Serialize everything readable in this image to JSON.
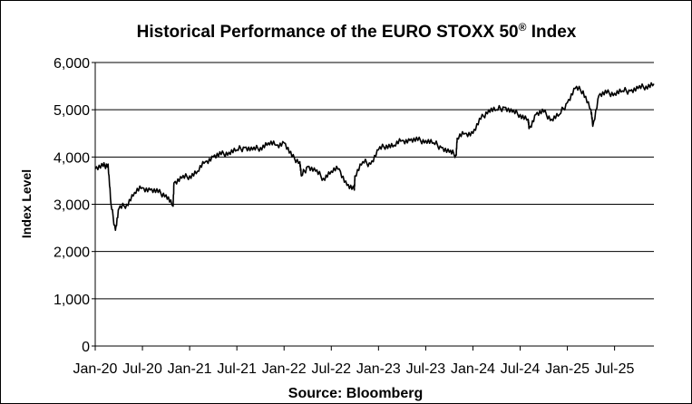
{
  "chart_data": {
    "type": "line",
    "title": "Historical  Performance  of the EURO STOXX 50",
    "title_superscript": "®",
    "title_suffix": " Index",
    "ylabel": "Index Level",
    "source": "Source: Bloomberg",
    "ylim": [
      0,
      6000
    ],
    "y_ticks": [
      "0",
      "1,000",
      "2,000",
      "3,000",
      "4,000",
      "5,000",
      "6,000"
    ],
    "y_tick_values": [
      0,
      1000,
      2000,
      3000,
      4000,
      5000,
      6000
    ],
    "x_ticks": [
      "Jan-20",
      "Jul-20",
      "Jan-21",
      "Jul-21",
      "Jan-22",
      "Jul-22",
      "Jan-23",
      "Jul-23",
      "Jan-24",
      "Jul-24",
      "Jan-25",
      "Jul-25"
    ],
    "x_tick_dates": [
      "2020-01",
      "2020-07",
      "2021-01",
      "2021-07",
      "2022-01",
      "2022-07",
      "2023-01",
      "2023-07",
      "2024-01",
      "2024-07",
      "2025-01",
      "2025-07"
    ],
    "xlim": [
      "2020-01",
      "2025-12"
    ],
    "grid": "horizontal",
    "line_color": "#000000",
    "series": [
      {
        "dates": [
          "2020-01",
          "2020-02",
          "2020-02-20",
          "2020-03",
          "2020-03-18",
          "2020-04",
          "2020-05",
          "2020-06",
          "2020-07",
          "2020-08",
          "2020-09",
          "2020-10",
          "2020-10-28",
          "2020-11",
          "2020-12",
          "2021-01",
          "2021-02",
          "2021-03",
          "2021-04",
          "2021-05",
          "2021-06",
          "2021-07",
          "2021-08",
          "2021-09",
          "2021-10",
          "2021-11",
          "2021-12",
          "2022-01",
          "2022-02",
          "2022-03",
          "2022-03-07",
          "2022-04",
          "2022-05",
          "2022-06",
          "2022-07",
          "2022-08",
          "2022-09",
          "2022-09-29",
          "2022-10",
          "2022-11",
          "2022-12",
          "2023-01",
          "2023-02",
          "2023-03",
          "2023-04",
          "2023-05",
          "2023-06",
          "2023-07",
          "2023-08",
          "2023-09",
          "2023-10",
          "2023-10-27",
          "2023-11",
          "2023-12",
          "2024-01",
          "2024-02",
          "2024-03",
          "2024-04",
          "2024-05",
          "2024-06",
          "2024-07",
          "2024-08",
          "2024-08-05",
          "2024-09",
          "2024-10",
          "2024-11",
          "2024-12",
          "2025-01",
          "2025-02",
          "2025-03",
          "2025-04",
          "2025-04-08",
          "2025-05",
          "2025-06",
          "2025-07",
          "2025-08",
          "2025-09",
          "2025-10",
          "2025-11",
          "2025-12"
        ],
        "values": [
          3750,
          3800,
          3850,
          3000,
          2450,
          2900,
          3000,
          3250,
          3350,
          3300,
          3250,
          3200,
          2960,
          3450,
          3550,
          3600,
          3700,
          3900,
          4000,
          4050,
          4100,
          4150,
          4200,
          4150,
          4200,
          4300,
          4250,
          4300,
          4000,
          3900,
          3600,
          3800,
          3700,
          3550,
          3700,
          3750,
          3400,
          3300,
          3600,
          3900,
          3850,
          4150,
          4250,
          4250,
          4350,
          4350,
          4350,
          4350,
          4300,
          4200,
          4100,
          4050,
          4400,
          4500,
          4500,
          4800,
          5000,
          5000,
          5050,
          4950,
          4900,
          4800,
          4600,
          4900,
          4950,
          4800,
          4900,
          5150,
          5450,
          5400,
          5000,
          4650,
          5300,
          5350,
          5350,
          5400,
          5400,
          5450,
          5500,
          5550
        ]
      }
    ]
  }
}
